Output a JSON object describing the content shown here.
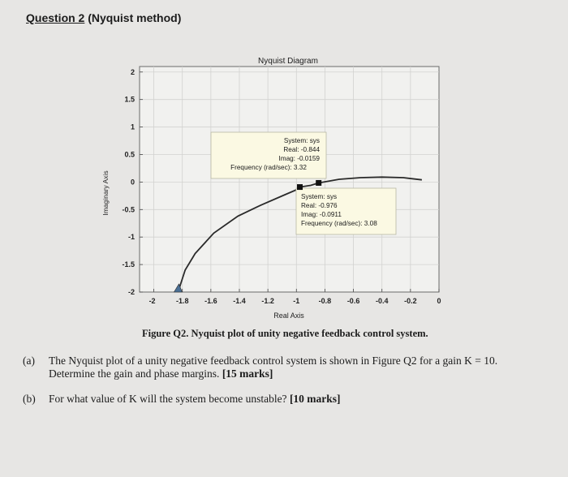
{
  "header": {
    "question_label": "Question 2",
    "method_label": "(Nyquist method)"
  },
  "chart_data": {
    "type": "line",
    "title": "Nyquist Diagram",
    "xlabel": "Real Axis",
    "ylabel": "Imaginary Axis",
    "xlim": [
      -2.1,
      0.0
    ],
    "ylim": [
      -2.0,
      2.1
    ],
    "x_ticks": [
      "-2",
      "-1.8",
      "-1.6",
      "-1.4",
      "-1.2",
      "-1",
      "-0.8",
      "-0.6",
      "-0.4",
      "-0.2",
      "0"
    ],
    "y_ticks": [
      "2",
      "1.5",
      "1",
      "0.5",
      "0",
      "-0.5",
      "-1",
      "-1.5",
      "-2"
    ],
    "grid": true,
    "series": [
      {
        "x": [
          -1.83,
          -1.78,
          -1.71,
          -1.58,
          -1.41,
          -1.25,
          -1.08,
          -0.99,
          -0.976,
          -0.9,
          -0.844,
          -0.7,
          -0.55,
          -0.4,
          -0.25,
          -0.12
        ],
        "y": [
          -2.0,
          -1.6,
          -1.3,
          -0.93,
          -0.62,
          -0.42,
          -0.23,
          -0.13,
          -0.0911,
          -0.06,
          -0.0159,
          0.05,
          0.08,
          0.09,
          0.08,
          0.04
        ]
      }
    ],
    "annotations": [
      {
        "title": "System: sys",
        "real": "Real: -0.844",
        "imag": "Imag: -0.0159",
        "freq": "Frequency (rad/sec): 3.32",
        "x": -0.844,
        "y": -0.0159
      },
      {
        "title": "System: sys",
        "real": "Real: -0.976",
        "imag": "Imag: -0.0911",
        "freq": "Frequency (rad/sec): 3.08",
        "x": -0.976,
        "y": -0.0911
      }
    ]
  },
  "caption": "Figure Q2. Nyquist plot of unity negative feedback control system.",
  "questions": [
    {
      "label": "(a)",
      "line1": "The Nyquist plot of a unity negative feedback control system is shown in Figure Q2 for a gain K = 10.",
      "line2": "Determine the gain and phase margins.",
      "marks": "[15 marks]"
    },
    {
      "label": "(b)",
      "line1": "For what value of K will the system become unstable?",
      "marks": "[10 marks]"
    }
  ]
}
